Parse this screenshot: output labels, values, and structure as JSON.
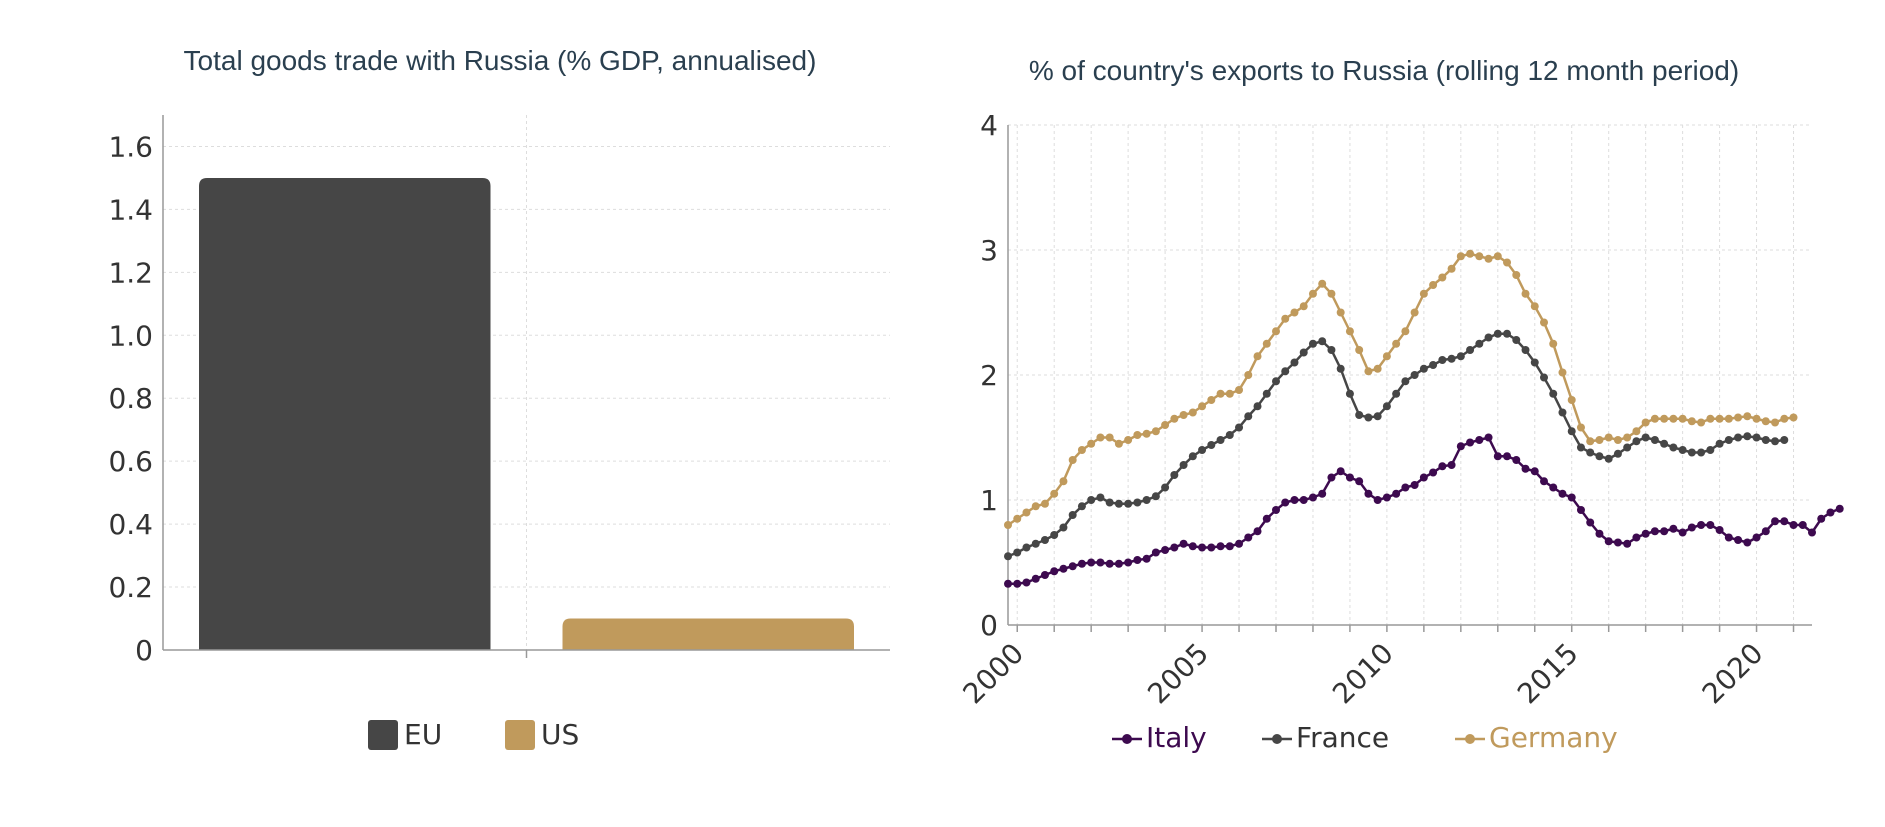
{
  "colors": {
    "eu": "#464646",
    "us": "#c09a5c",
    "italy": "#3d0a4f",
    "france": "#464646",
    "germany": "#c09a5c",
    "grid": "#dddddd",
    "axis": "#999999",
    "title": "#2a3f4f"
  },
  "chart_data": [
    {
      "type": "bar",
      "title": "Total goods trade with Russia (% GDP, annualised)",
      "categories": [
        "EU",
        "US"
      ],
      "series": [
        {
          "name": "EU",
          "values": [
            1.5,
            null
          ],
          "color": "#464646"
        },
        {
          "name": "US",
          "values": [
            null,
            0.1
          ],
          "color": "#c09a5c"
        }
      ],
      "values": [
        1.5,
        0.1
      ],
      "ylim": [
        0,
        1.7
      ],
      "yticks": [
        0,
        0.2,
        0.4,
        0.6,
        0.8,
        1.0,
        1.2,
        1.4,
        1.6
      ],
      "ytick_labels": [
        "0",
        "0.2",
        "0.4",
        "0.6",
        "0.8",
        "1.0",
        "1.2",
        "1.4",
        "1.6"
      ],
      "xlabel": "",
      "ylabel": "",
      "grid": true,
      "legend": "bottom"
    },
    {
      "type": "line",
      "title": "% of country's exports to Russia (rolling 12 month period)",
      "x_start": 1999.75,
      "x_step": 0.25,
      "xlim": [
        1999.75,
        2021.5
      ],
      "ylim": [
        0,
        4
      ],
      "yticks": [
        0,
        1,
        2,
        3,
        4
      ],
      "ytick_labels": [
        "0",
        "1",
        "2",
        "3",
        "4"
      ],
      "xticks": [
        2000,
        2005,
        2010,
        2015,
        2020
      ],
      "xtick_labels": [
        "2000",
        "2005",
        "2010",
        "2015",
        "2020"
      ],
      "xlabel": "",
      "ylabel": "",
      "grid": true,
      "legend": "bottom",
      "series": [
        {
          "name": "Italy",
          "color": "#3d0a4f",
          "values": [
            0.33,
            0.33,
            0.34,
            0.37,
            0.4,
            0.43,
            0.45,
            0.47,
            0.49,
            0.5,
            0.5,
            0.49,
            0.49,
            0.5,
            0.52,
            0.53,
            0.58,
            0.6,
            0.62,
            0.65,
            0.63,
            0.62,
            0.62,
            0.63,
            0.63,
            0.65,
            0.7,
            0.75,
            0.85,
            0.92,
            0.98,
            1.0,
            1.0,
            1.02,
            1.05,
            1.18,
            1.23,
            1.18,
            1.15,
            1.05,
            1.0,
            1.02,
            1.05,
            1.1,
            1.12,
            1.18,
            1.22,
            1.27,
            1.28,
            1.43,
            1.46,
            1.48,
            1.5,
            1.35,
            1.35,
            1.32,
            1.25,
            1.23,
            1.15,
            1.1,
            1.05,
            1.02,
            0.92,
            0.82,
            0.73,
            0.67,
            0.66,
            0.65,
            0.7,
            0.73,
            0.75,
            0.75,
            0.77,
            0.74,
            0.78,
            0.8,
            0.8,
            0.76,
            0.7,
            0.68,
            0.66,
            0.7,
            0.75,
            0.83,
            0.83,
            0.8,
            0.8,
            0.74,
            0.85,
            0.9,
            0.93
          ]
        },
        {
          "name": "France",
          "color": "#464646",
          "values": [
            0.55,
            0.58,
            0.62,
            0.65,
            0.68,
            0.72,
            0.78,
            0.88,
            0.95,
            1.0,
            1.02,
            0.98,
            0.97,
            0.97,
            0.98,
            1.0,
            1.03,
            1.1,
            1.2,
            1.28,
            1.35,
            1.4,
            1.44,
            1.48,
            1.52,
            1.58,
            1.67,
            1.75,
            1.85,
            1.95,
            2.03,
            2.1,
            2.18,
            2.25,
            2.27,
            2.2,
            2.05,
            1.85,
            1.68,
            1.66,
            1.67,
            1.75,
            1.85,
            1.95,
            2.0,
            2.05,
            2.08,
            2.12,
            2.13,
            2.15,
            2.2,
            2.25,
            2.3,
            2.33,
            2.33,
            2.28,
            2.2,
            2.1,
            1.98,
            1.85,
            1.7,
            1.55,
            1.42,
            1.38,
            1.35,
            1.33,
            1.37,
            1.42,
            1.47,
            1.5,
            1.48,
            1.45,
            1.42,
            1.4,
            1.38,
            1.38,
            1.4,
            1.45,
            1.48,
            1.5,
            1.51,
            1.5,
            1.48,
            1.47,
            1.48
          ]
        },
        {
          "name": "Germany",
          "color": "#c09a5c",
          "values": [
            0.8,
            0.85,
            0.9,
            0.95,
            0.97,
            1.05,
            1.15,
            1.32,
            1.4,
            1.45,
            1.5,
            1.5,
            1.45,
            1.48,
            1.52,
            1.53,
            1.55,
            1.6,
            1.65,
            1.68,
            1.7,
            1.75,
            1.8,
            1.85,
            1.85,
            1.88,
            2.0,
            2.15,
            2.25,
            2.35,
            2.45,
            2.5,
            2.55,
            2.65,
            2.73,
            2.65,
            2.5,
            2.35,
            2.2,
            2.03,
            2.05,
            2.15,
            2.25,
            2.35,
            2.5,
            2.65,
            2.72,
            2.78,
            2.85,
            2.95,
            2.97,
            2.95,
            2.93,
            2.95,
            2.9,
            2.8,
            2.65,
            2.55,
            2.42,
            2.25,
            2.02,
            1.8,
            1.58,
            1.47,
            1.48,
            1.5,
            1.48,
            1.5,
            1.55,
            1.62,
            1.65,
            1.65,
            1.65,
            1.65,
            1.63,
            1.62,
            1.65,
            1.65,
            1.65,
            1.66,
            1.67,
            1.65,
            1.63,
            1.62,
            1.65,
            1.66
          ]
        }
      ]
    }
  ]
}
